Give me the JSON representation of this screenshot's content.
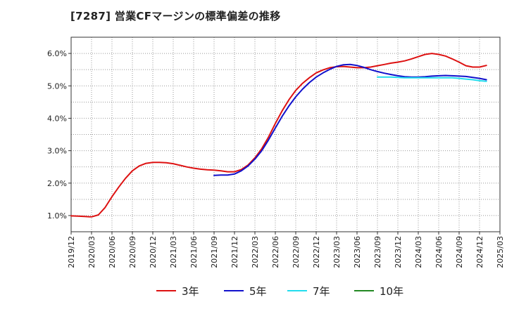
{
  "chart_data": {
    "type": "line",
    "title": "[7287]  営業CFマージンの標準偏差の推移",
    "xlabel": "",
    "ylabel": "",
    "ylim": [
      0.5,
      6.5
    ],
    "y_ticks": [
      "1.0%",
      "2.0%",
      "3.0%",
      "4.0%",
      "5.0%",
      "6.0%"
    ],
    "y_tick_values": [
      1.0,
      2.0,
      3.0,
      4.0,
      5.0,
      6.0
    ],
    "x_ticks": [
      "2019/12",
      "2020/03",
      "2020/06",
      "2020/09",
      "2020/12",
      "2021/03",
      "2021/06",
      "2021/09",
      "2021/12",
      "2022/03",
      "2022/06",
      "2022/09",
      "2022/12",
      "2023/03",
      "2023/06",
      "2023/09",
      "2023/12",
      "2024/03",
      "2024/06",
      "2024/09",
      "2024/12",
      "2025/03"
    ],
    "grid": true,
    "legend_position": "bottom",
    "series": [
      {
        "name": "3年",
        "color": "#dd1111",
        "x": [
          0,
          1,
          2,
          3,
          4,
          5,
          6,
          7,
          8,
          9,
          10,
          11,
          12,
          13,
          14,
          15,
          16,
          17,
          18,
          19,
          20,
          21,
          22,
          23,
          24,
          25,
          26,
          27,
          28,
          29,
          30,
          31,
          32,
          33,
          34,
          35,
          36,
          37,
          38,
          39,
          40,
          41,
          42,
          43,
          44,
          45,
          46,
          47,
          48,
          49,
          50,
          51,
          52,
          53,
          54,
          55,
          56,
          57,
          58,
          59,
          60,
          61
        ],
        "values": [
          0.99,
          0.98,
          0.97,
          0.96,
          1.02,
          1.25,
          1.58,
          1.88,
          2.15,
          2.38,
          2.53,
          2.61,
          2.64,
          2.64,
          2.63,
          2.6,
          2.55,
          2.5,
          2.46,
          2.43,
          2.41,
          2.4,
          2.38,
          2.35,
          2.35,
          2.42,
          2.56,
          2.78,
          3.06,
          3.42,
          3.84,
          4.23,
          4.57,
          4.86,
          5.08,
          5.25,
          5.4,
          5.49,
          5.56,
          5.59,
          5.6,
          5.58,
          5.56,
          5.56,
          5.58,
          5.62,
          5.66,
          5.7,
          5.73,
          5.77,
          5.83,
          5.9,
          5.97,
          6.0,
          5.97,
          5.92,
          5.83,
          5.73,
          5.62,
          5.58,
          5.58,
          5.63
        ]
      },
      {
        "name": "5年",
        "color": "#1111cc",
        "x": [
          21,
          22,
          23,
          24,
          25,
          26,
          27,
          28,
          29,
          30,
          31,
          32,
          33,
          34,
          35,
          36,
          37,
          38,
          39,
          40,
          41,
          42,
          43,
          44,
          45,
          46,
          47,
          48,
          49,
          50,
          51,
          52,
          53,
          54,
          55,
          56,
          57,
          58,
          59,
          60,
          61
        ],
        "values": [
          2.24,
          2.25,
          2.25,
          2.28,
          2.38,
          2.53,
          2.74,
          3.0,
          3.33,
          3.7,
          4.06,
          4.38,
          4.66,
          4.9,
          5.1,
          5.27,
          5.4,
          5.51,
          5.6,
          5.65,
          5.66,
          5.63,
          5.57,
          5.5,
          5.44,
          5.39,
          5.35,
          5.31,
          5.28,
          5.27,
          5.27,
          5.28,
          5.3,
          5.31,
          5.32,
          5.31,
          5.3,
          5.29,
          5.26,
          5.23,
          5.19
        ]
      },
      {
        "name": "7年",
        "color": "#22ddee",
        "x": [
          45,
          46,
          47,
          48,
          49,
          50,
          51,
          52,
          53,
          54,
          55,
          56,
          57,
          58,
          59,
          60,
          61
        ],
        "values": [
          5.27,
          5.27,
          5.27,
          5.26,
          5.25,
          5.25,
          5.25,
          5.25,
          5.25,
          5.25,
          5.25,
          5.25,
          5.23,
          5.21,
          5.19,
          5.16,
          5.14
        ]
      },
      {
        "name": "10年",
        "color": "#228822",
        "x": [],
        "values": []
      }
    ]
  }
}
